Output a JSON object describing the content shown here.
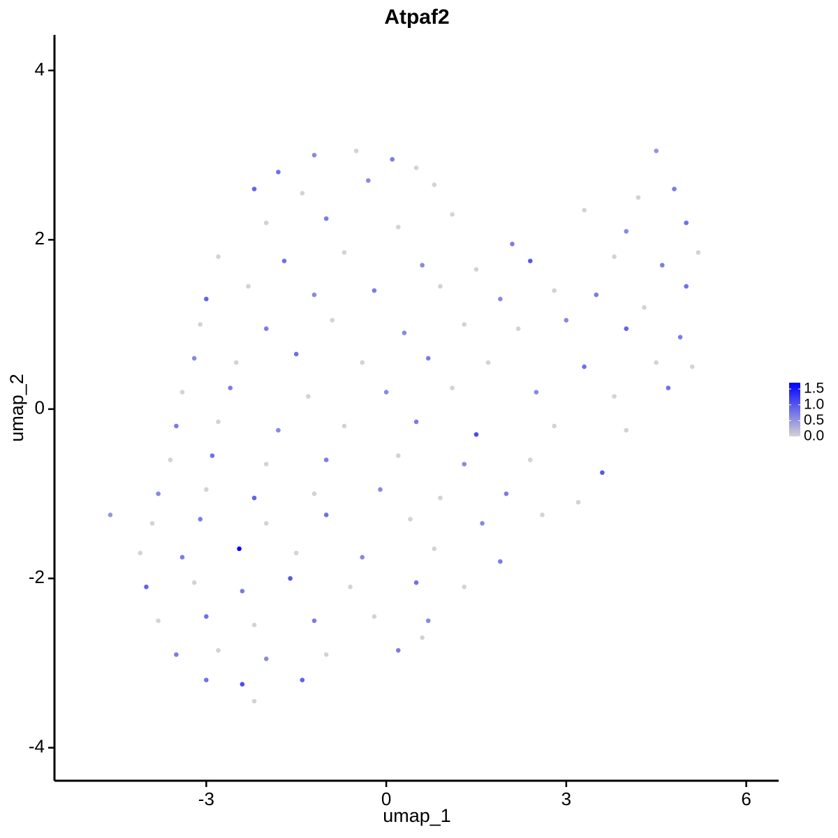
{
  "chart_data": {
    "type": "scatter",
    "title": "Atpaf2",
    "x_label": "umap_1",
    "y_label": "umap_2",
    "xlim": [
      -5.53,
      6.54
    ],
    "ylim": [
      -4.39,
      4.42
    ],
    "xticks": [
      -3,
      0,
      3,
      6
    ],
    "yticks": [
      -4,
      -2,
      0,
      2,
      4
    ],
    "colors": [
      "#d3d3d3",
      "#0000ff"
    ],
    "clim": [
      0,
      1.7
    ],
    "cticks": [
      {
        "value": 0,
        "label": "0.0"
      },
      0.5,
      {
        "value": 1,
        "label": "1.0"
      },
      1.5
    ],
    "x": [
      -1.2,
      -0.5,
      0.1,
      0.5,
      -1.8,
      4.5,
      -2.2,
      -1.4,
      -0.3,
      0.8,
      4.2,
      4.8,
      -2.0,
      -1.0,
      0.2,
      1.1,
      3.3,
      4.0,
      5.0,
      2.1,
      -2.8,
      -1.7,
      -0.7,
      0.6,
      1.5,
      2.4,
      3.8,
      4.6,
      5.2,
      -3.0,
      -2.3,
      -1.2,
      -0.2,
      0.9,
      1.9,
      2.8,
      3.5,
      4.3,
      5.0,
      -3.1,
      -2.0,
      -0.9,
      0.3,
      1.3,
      2.2,
      3.0,
      4.0,
      4.9,
      -3.2,
      -2.5,
      -1.5,
      -0.4,
      0.7,
      1.7,
      3.3,
      4.5,
      5.1,
      -3.4,
      -2.6,
      -1.3,
      0.0,
      1.1,
      2.5,
      3.8,
      4.7,
      -3.5,
      -2.8,
      -1.8,
      -0.7,
      0.5,
      1.5,
      2.8,
      4.0,
      -3.6,
      -2.9,
      -2.0,
      -1.0,
      0.2,
      1.3,
      2.4,
      3.6,
      -3.8,
      -3.0,
      -2.2,
      -1.2,
      -0.1,
      0.9,
      2.0,
      3.2,
      -4.6,
      -3.9,
      -3.1,
      -2.0,
      -1.0,
      0.4,
      1.6,
      2.6,
      -4.1,
      -3.4,
      -2.45,
      -1.5,
      -0.4,
      0.8,
      1.9,
      -4.0,
      -3.2,
      -2.4,
      -1.6,
      -0.6,
      0.5,
      1.3,
      -3.8,
      -3.0,
      -2.2,
      -1.2,
      -0.2,
      0.7,
      -3.5,
      -2.8,
      -2.0,
      -1.0,
      0.2,
      0.6,
      -3.0,
      -2.4,
      -1.4,
      -2.2
    ],
    "y": [
      3.0,
      3.05,
      2.95,
      2.85,
      2.8,
      3.05,
      2.6,
      2.55,
      2.7,
      2.65,
      2.5,
      2.6,
      2.2,
      2.25,
      2.15,
      2.3,
      2.35,
      2.1,
      2.2,
      1.95,
      1.8,
      1.75,
      1.85,
      1.7,
      1.65,
      1.75,
      1.8,
      1.7,
      1.85,
      1.3,
      1.45,
      1.35,
      1.4,
      1.45,
      1.3,
      1.4,
      1.35,
      1.2,
      1.45,
      1.0,
      0.95,
      1.05,
      0.9,
      1.0,
      0.95,
      1.05,
      0.95,
      0.85,
      0.6,
      0.55,
      0.65,
      0.55,
      0.6,
      0.55,
      0.5,
      0.55,
      0.5,
      0.2,
      0.25,
      0.15,
      0.2,
      0.25,
      0.2,
      0.15,
      0.25,
      -0.2,
      -0.15,
      -0.25,
      -0.2,
      -0.15,
      -0.3,
      -0.2,
      -0.25,
      -0.6,
      -0.55,
      -0.65,
      -0.6,
      -0.55,
      -0.65,
      -0.6,
      -0.75,
      -1.0,
      -0.95,
      -1.05,
      -1.0,
      -0.95,
      -1.05,
      -1.0,
      -1.1,
      -1.25,
      -1.35,
      -1.3,
      -1.35,
      -1.25,
      -1.3,
      -1.35,
      -1.25,
      -1.7,
      -1.75,
      -1.65,
      -1.7,
      -1.75,
      -1.65,
      -1.8,
      -2.1,
      -2.05,
      -2.15,
      -2.0,
      -2.1,
      -2.05,
      -2.1,
      -2.5,
      -2.45,
      -2.55,
      -2.5,
      -2.45,
      -2.5,
      -2.9,
      -2.85,
      -2.95,
      -2.9,
      -2.85,
      -2.7,
      -3.2,
      -3.25,
      -3.2,
      -3.45
    ],
    "values": [
      0.6,
      0,
      0.7,
      0,
      0.8,
      0.5,
      0.9,
      0,
      0.6,
      0,
      0,
      0.7,
      0,
      0.7,
      0,
      0,
      0,
      0.6,
      0.8,
      0.7,
      0,
      0.8,
      0,
      0.6,
      0,
      1.0,
      0,
      0.7,
      0,
      0.9,
      0,
      0.6,
      0.7,
      0,
      0.6,
      0,
      0.7,
      0,
      0.8,
      0,
      0.7,
      0,
      0.6,
      0,
      0,
      0.6,
      0.9,
      0.7,
      0.6,
      0,
      0.8,
      0,
      0.7,
      0,
      0.8,
      0,
      0,
      0,
      0.7,
      0,
      0.6,
      0,
      0.6,
      0,
      0.8,
      0.7,
      0,
      0.6,
      0,
      0.7,
      1.1,
      0,
      0,
      0,
      0.8,
      0,
      0.7,
      0,
      0.6,
      0,
      1.0,
      0.6,
      0,
      0.9,
      0,
      0.6,
      0,
      0.7,
      0,
      0.5,
      0,
      0.7,
      0,
      0.8,
      0,
      0.6,
      0,
      0,
      0.7,
      1.7,
      0,
      0.6,
      0,
      0.7,
      0.9,
      0,
      0.7,
      1.0,
      0,
      0.8,
      0,
      0,
      0.8,
      0,
      0.7,
      0,
      0.6,
      0.7,
      0,
      0.6,
      0,
      0.7,
      0,
      0.8,
      1.1,
      0.9,
      0
    ]
  }
}
